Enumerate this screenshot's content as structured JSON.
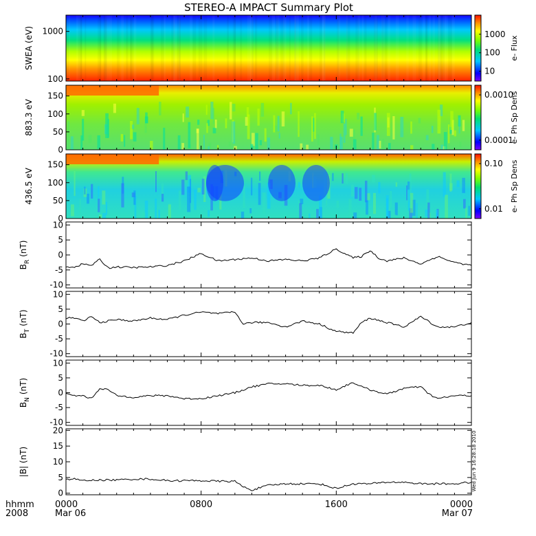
{
  "title": "STEREO-A IMPACT Summary Plot",
  "timestamp": "Wed Jun  9 16:28:18 2010",
  "time_axis": {
    "corner_top": "hhmm",
    "corner_bottom": "2008",
    "ticks": [
      {
        "t": 0,
        "label": "0000",
        "date": "Mar 06"
      },
      {
        "t": 8,
        "label": "0800",
        "date": ""
      },
      {
        "t": 16,
        "label": "1600",
        "date": ""
      },
      {
        "t": 24,
        "label": "0000",
        "date": "Mar 07"
      }
    ]
  },
  "chart_data": [
    {
      "type": "heatmap",
      "id": "swea-spectrogram",
      "ylabel": "SWEA (eV)",
      "ylim": [
        90,
        2200
      ],
      "yscale": "log",
      "yticks": [
        "100",
        "1000"
      ],
      "colorbar_label": "e- Flux",
      "colorbar_ticks": [
        "10",
        "100",
        "1000"
      ],
      "colorbar_scale": "log",
      "description": "energy spectrogram, flux decreasing with energy"
    },
    {
      "type": "heatmap",
      "id": "pad-883",
      "ylabel": "883.3 eV",
      "ylim": [
        0,
        180
      ],
      "yticks": [
        "0",
        "50",
        "100",
        "150"
      ],
      "colorbar_label": "e- Ph Sp Dens",
      "colorbar_ticks": [
        "0.0001",
        "0.0010"
      ],
      "colorbar_scale": "log"
    },
    {
      "type": "heatmap",
      "id": "pad-436",
      "ylabel": "436.5 eV",
      "ylim": [
        0,
        180
      ],
      "yticks": [
        "0",
        "50",
        "100",
        "150"
      ],
      "colorbar_label": "e- Ph Sp Dens",
      "colorbar_ticks": [
        "0.01",
        "0.10"
      ],
      "colorbar_scale": "log"
    },
    {
      "type": "line",
      "id": "br",
      "ylabel": "B",
      "ylabel_sub": "R",
      "ylabel_unit": "(nT)",
      "ylim": [
        -11,
        11
      ],
      "yticks": [
        "-10",
        "-5",
        "0",
        "5",
        "10"
      ],
      "x": [
        0,
        0.5,
        1,
        1.5,
        2,
        2.5,
        3,
        4,
        5,
        6,
        7,
        8,
        9,
        10,
        11,
        12,
        13,
        14,
        15,
        16,
        17,
        17.5,
        18,
        18.5,
        19,
        20,
        21,
        22,
        23,
        24
      ],
      "y": [
        -4,
        -4,
        -3,
        -3.5,
        -1.5,
        -4.3,
        -4,
        -4.2,
        -4,
        -3.5,
        -2,
        0.5,
        -2,
        -1.5,
        -1,
        -2,
        -1.5,
        -2,
        -1,
        2,
        -1,
        -0.5,
        1.5,
        -1,
        -2,
        -1,
        -3,
        -0.5,
        -2.5,
        -3.5
      ]
    },
    {
      "type": "line",
      "id": "bt",
      "ylabel": "B",
      "ylabel_sub": "T",
      "ylabel_unit": "(nT)",
      "ylim": [
        -11,
        11
      ],
      "yticks": [
        "-10",
        "-5",
        "0",
        "5",
        "10"
      ],
      "x": [
        0,
        0.5,
        1,
        1.5,
        2,
        3,
        4,
        5,
        6,
        7,
        8,
        9,
        10,
        10.5,
        11,
        12,
        13,
        14,
        15,
        16,
        17,
        17.5,
        18,
        19,
        20,
        21,
        22,
        23,
        24
      ],
      "y": [
        2,
        2,
        1,
        2.5,
        0.5,
        1.5,
        1,
        2,
        1.5,
        3,
        4,
        3.5,
        4,
        0,
        0.5,
        0.5,
        -1,
        1,
        0,
        -2.5,
        -3,
        0.5,
        2,
        0.5,
        -1,
        2.5,
        -1,
        -1,
        0.5
      ]
    },
    {
      "type": "line",
      "id": "bn",
      "ylabel": "B",
      "ylabel_sub": "N",
      "ylabel_unit": "(nT)",
      "ylim": [
        -11,
        11
      ],
      "yticks": [
        "-10",
        "-5",
        "0",
        "5",
        "10"
      ],
      "x": [
        0,
        0.5,
        1,
        1.5,
        2,
        2.5,
        3,
        4,
        5,
        6,
        7,
        8,
        9,
        10,
        10.5,
        11,
        12,
        13,
        14,
        15,
        16,
        17,
        17.5,
        18,
        19,
        20,
        21,
        21.5,
        22,
        23,
        24
      ],
      "y": [
        -0.5,
        -1,
        -1,
        -2,
        1.5,
        1,
        -1,
        -1.5,
        -1,
        -1,
        -2,
        -2,
        -1,
        0,
        1,
        2,
        3,
        3,
        2.5,
        2.5,
        1,
        3.5,
        2,
        1,
        -0.5,
        1.5,
        2,
        -0.5,
        -2,
        -1,
        -1
      ]
    },
    {
      "type": "line",
      "id": "bmag",
      "ylabel": "|B| (nT)",
      "ylim": [
        -0.5,
        20.5
      ],
      "yticks": [
        "0",
        "5",
        "10",
        "15",
        "20"
      ],
      "x": [
        0,
        0.5,
        1,
        2,
        3,
        4,
        5,
        6,
        7,
        8,
        9,
        10,
        10.5,
        11,
        12,
        13,
        14,
        15,
        16,
        17,
        18,
        19,
        20,
        21,
        22,
        23,
        24
      ],
      "y": [
        4.5,
        4.5,
        4,
        4.2,
        4.2,
        4.5,
        4.5,
        4,
        4,
        4,
        3.8,
        3.8,
        2,
        1,
        2.5,
        3,
        3,
        3,
        1.5,
        3,
        3,
        3.5,
        3.5,
        3,
        3,
        3,
        3.5
      ]
    }
  ]
}
